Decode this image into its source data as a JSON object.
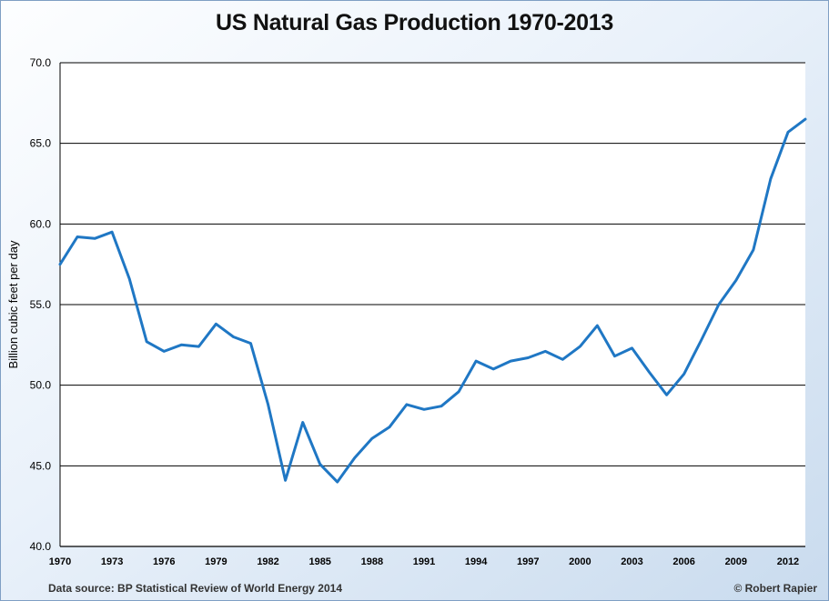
{
  "chart_data": {
    "type": "line",
    "title": "US Natural Gas Production 1970-2013",
    "xlabel": "",
    "ylabel": "Billion cubic feet per day",
    "ylim": [
      40,
      70
    ],
    "xlim": [
      1970,
      2013
    ],
    "grid": true,
    "yticks": [
      "40.0",
      "45.0",
      "50.0",
      "55.0",
      "60.0",
      "65.0",
      "70.0"
    ],
    "xticks": [
      "1970",
      "1973",
      "1976",
      "1979",
      "1982",
      "1985",
      "1988",
      "1991",
      "1994",
      "1997",
      "2000",
      "2003",
      "2006",
      "2009",
      "2012"
    ],
    "series": [
      {
        "name": "US Natural Gas Production",
        "color": "#1f77c4",
        "x": [
          1970,
          1971,
          1972,
          1973,
          1974,
          1975,
          1976,
          1977,
          1978,
          1979,
          1980,
          1981,
          1982,
          1983,
          1984,
          1985,
          1986,
          1987,
          1988,
          1989,
          1990,
          1991,
          1992,
          1993,
          1994,
          1995,
          1996,
          1997,
          1998,
          1999,
          2000,
          2001,
          2002,
          2003,
          2004,
          2005,
          2006,
          2007,
          2008,
          2009,
          2010,
          2011,
          2012,
          2013
        ],
        "values": [
          57.5,
          59.2,
          59.1,
          59.5,
          56.6,
          52.7,
          52.1,
          52.5,
          52.4,
          53.8,
          53.0,
          52.6,
          48.8,
          44.1,
          47.7,
          45.1,
          44.0,
          45.5,
          46.7,
          47.4,
          48.8,
          48.5,
          48.7,
          49.6,
          51.5,
          51.0,
          51.5,
          51.7,
          52.1,
          51.6,
          52.4,
          53.7,
          51.8,
          52.3,
          50.8,
          49.4,
          50.7,
          52.8,
          55.0,
          56.5,
          58.4,
          62.8,
          65.7,
          66.5
        ]
      }
    ],
    "source": "Data source: BP Statistical Review of World Energy 2014",
    "credit": "© Robert Rapier"
  }
}
